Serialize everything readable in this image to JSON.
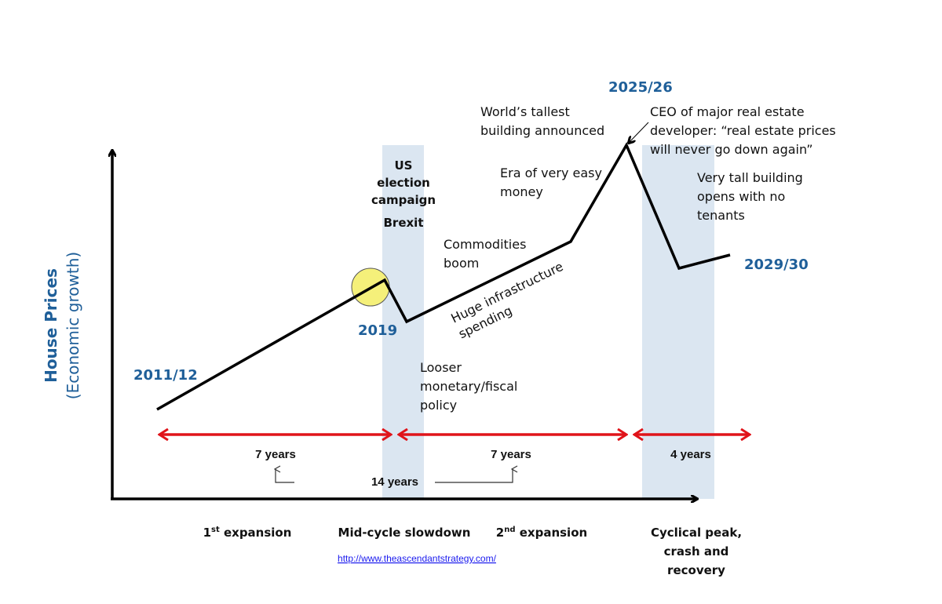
{
  "y_axis": {
    "title": "House Prices",
    "subtitle": "(Economic growth)"
  },
  "year_labels": {
    "start": "2011/12",
    "mid": "2019",
    "peak": "2025/26",
    "end": "2029/30"
  },
  "annotations": {
    "us_election": [
      "US",
      "election",
      "campaign"
    ],
    "brexit": "Brexit",
    "looser_policy": [
      "Looser",
      "monetary/fiscal",
      "policy"
    ],
    "commodities": [
      "Commodities",
      "boom"
    ],
    "infrastructure": [
      "Huge infrastructure",
      "spending"
    ],
    "easy_money": [
      "Era of very easy",
      "money"
    ],
    "tallest_building": [
      "World’s tallest",
      "building announced"
    ],
    "ceo_quote": [
      "CEO of major real estate",
      "developer: “real estate prices",
      "will never go down again”"
    ],
    "tall_building_opens": [
      "Very tall building",
      "opens with no",
      "tenants"
    ]
  },
  "durations": {
    "first": "7 years",
    "second": "7 years",
    "third": "4 years",
    "total": "14 years"
  },
  "phases": {
    "first_expansion": {
      "num": "1",
      "sup": "st",
      "text": " expansion"
    },
    "slowdown": "Mid-cycle slowdown",
    "second_expansion": {
      "num": "2",
      "sup": "nd",
      "text": " expansion"
    },
    "peak": [
      "Cyclical peak,",
      "crash and",
      "recovery"
    ]
  },
  "source_link": "http://www.theascendantstrategy.com/",
  "colors": {
    "line": "#000000",
    "arrow": "#e0141a",
    "band": "#dbe6f1",
    "year": "#1f5f99",
    "highlight": "#f5f07a"
  }
}
